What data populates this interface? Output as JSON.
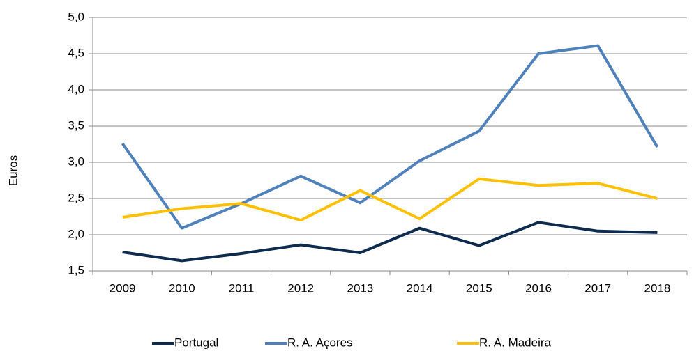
{
  "chart_data": {
    "type": "line",
    "y_label": "Euros",
    "categories": [
      "2009",
      "2010",
      "2011",
      "2012",
      "2013",
      "2014",
      "2015",
      "2016",
      "2017",
      "2018"
    ],
    "series": [
      {
        "name": "Portugal",
        "color": "#0d2a4f",
        "values": [
          1.76,
          1.64,
          1.74,
          1.86,
          1.75,
          2.09,
          1.85,
          2.17,
          2.05,
          2.03
        ]
      },
      {
        "name": "R. A. Açores",
        "color": "#4f81bd",
        "values": [
          3.26,
          2.09,
          2.43,
          2.81,
          2.44,
          3.02,
          3.43,
          4.5,
          4.61,
          3.21
        ]
      },
      {
        "name": "R. A. Madeira",
        "color": "#ffc000",
        "values": [
          2.24,
          2.36,
          2.43,
          2.2,
          2.61,
          2.22,
          2.77,
          2.68,
          2.71,
          2.5
        ]
      }
    ],
    "ylim": [
      1.5,
      5.0
    ],
    "yticks": [
      {
        "value": 1.5,
        "label": "1,5"
      },
      {
        "value": 2.0,
        "label": "2,0"
      },
      {
        "value": 2.5,
        "label": "2,5"
      },
      {
        "value": 3.0,
        "label": "3,0"
      },
      {
        "value": 3.5,
        "label": "3,5"
      },
      {
        "value": 4.0,
        "label": "4,0"
      },
      {
        "value": 4.5,
        "label": "4,5"
      },
      {
        "value": 5.0,
        "label": "5,0"
      }
    ],
    "grid": true,
    "legend": "bottom"
  }
}
